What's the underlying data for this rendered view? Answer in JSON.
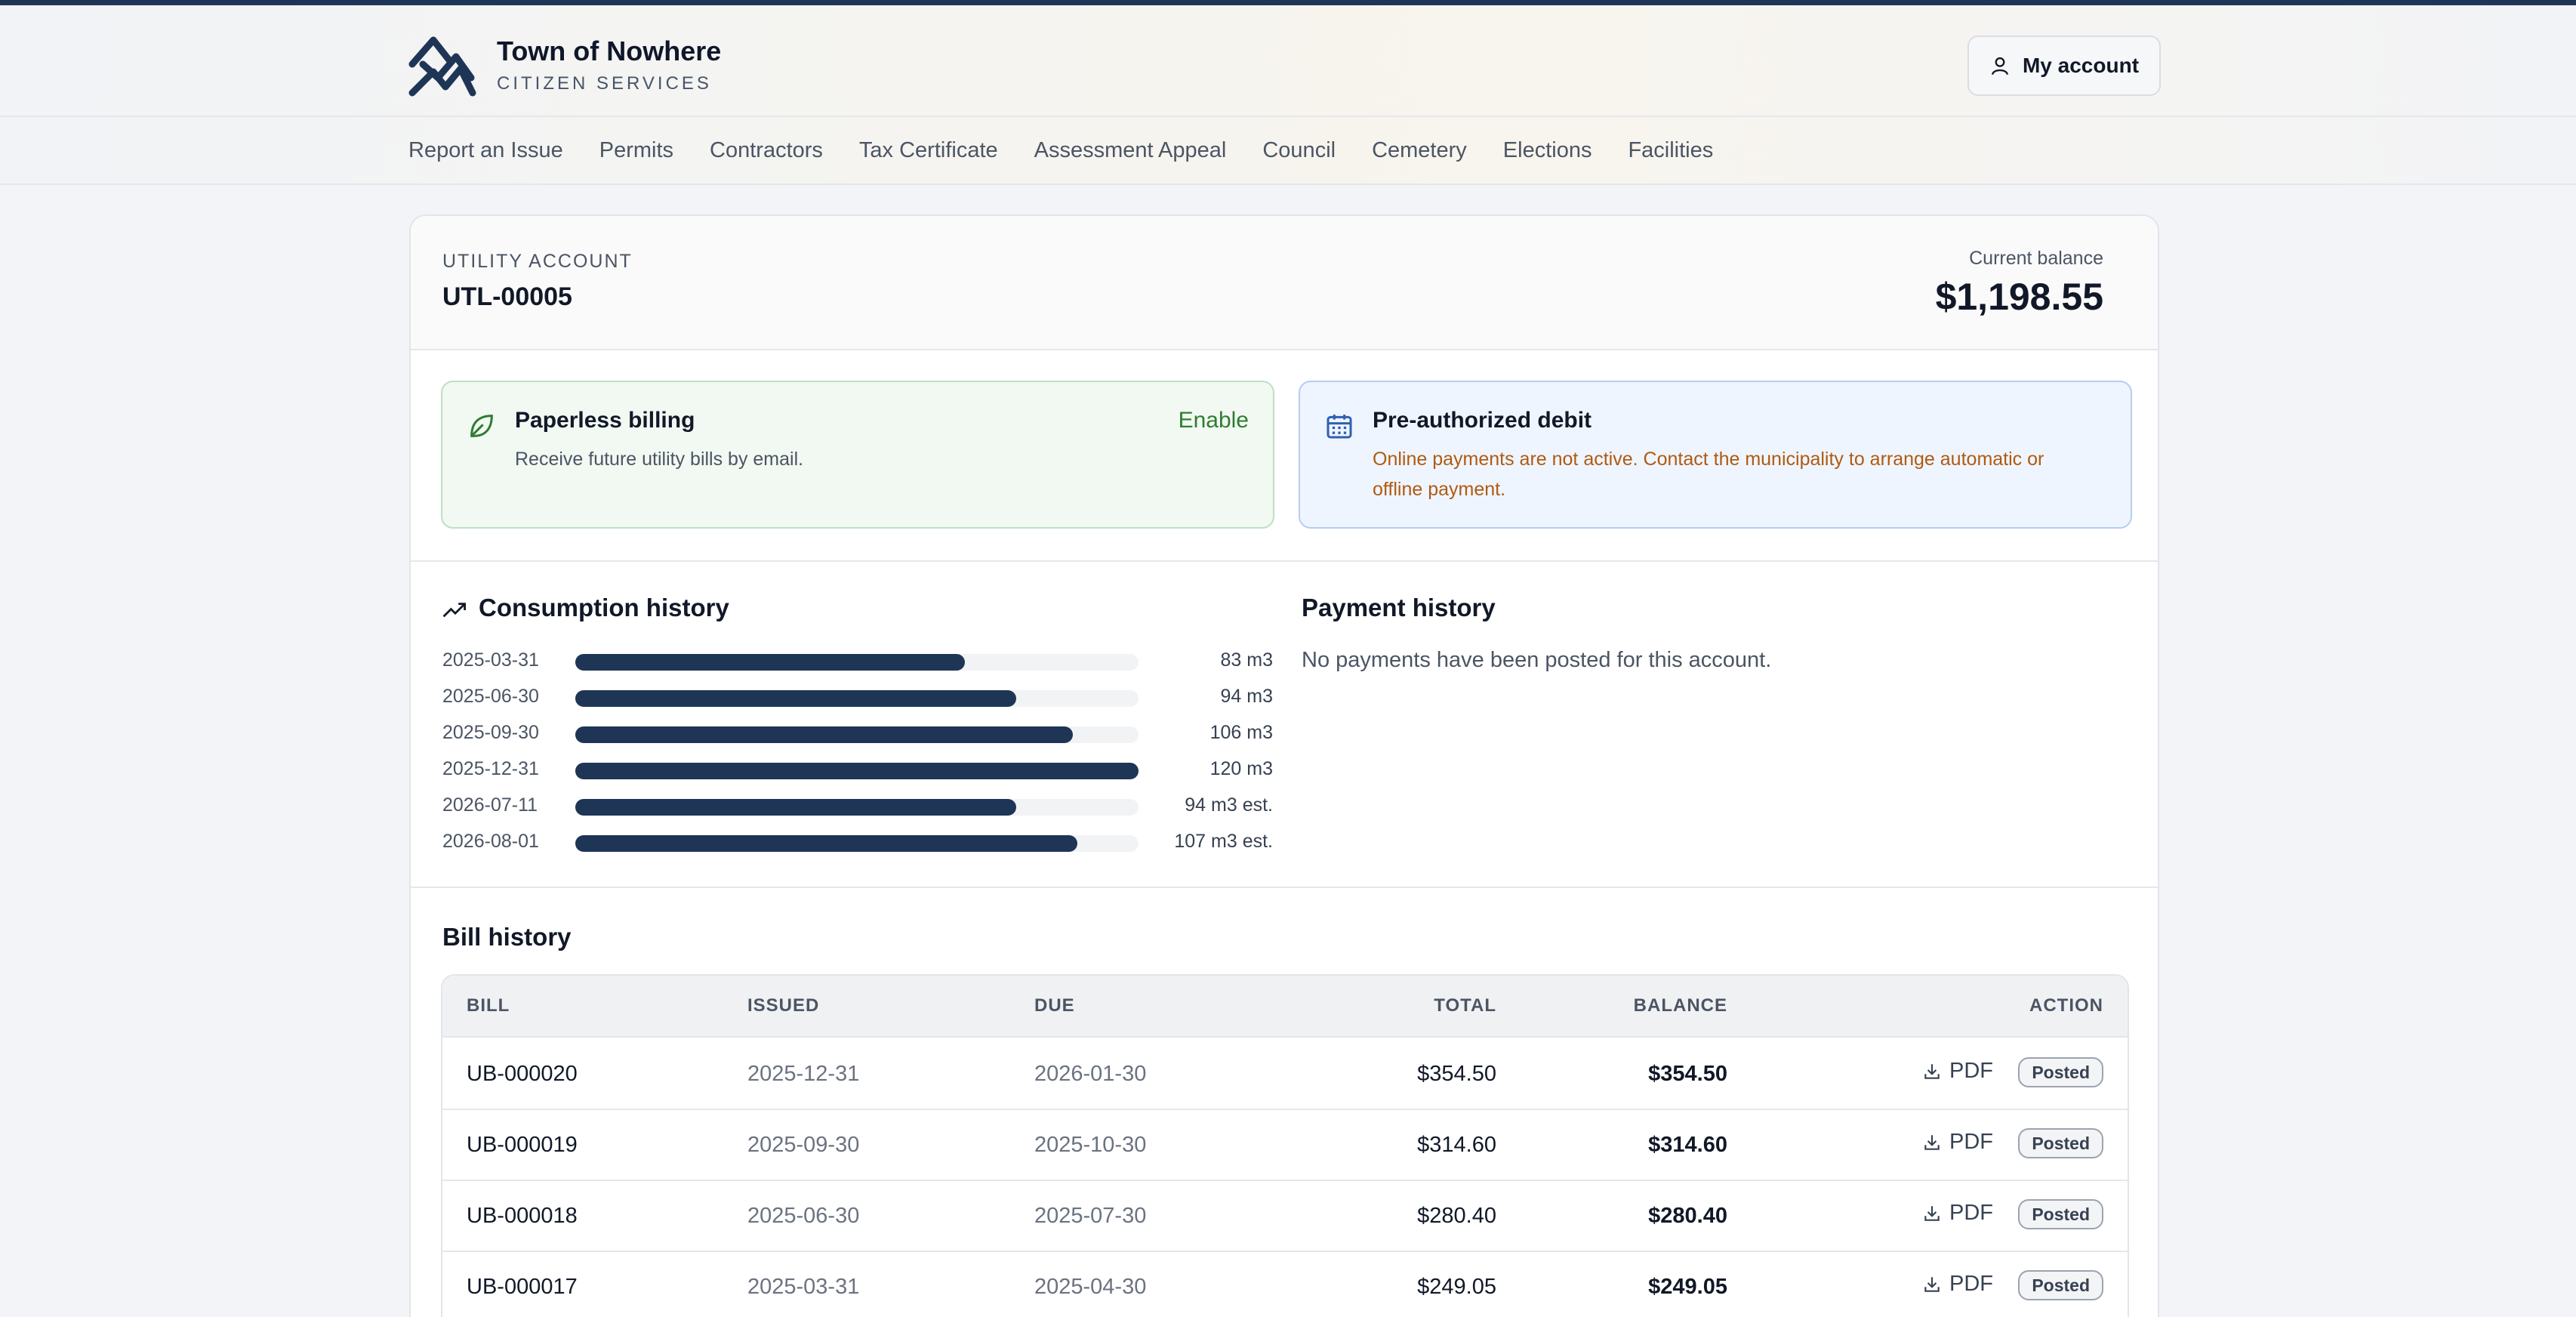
{
  "header": {
    "brand_title": "Town of Nowhere",
    "brand_subtitle": "CITIZEN SERVICES",
    "account_button": "My account",
    "icons": {
      "logo": "town-logo",
      "account": "user-icon"
    }
  },
  "nav": {
    "items": [
      {
        "label": "Report an Issue"
      },
      {
        "label": "Permits"
      },
      {
        "label": "Contractors"
      },
      {
        "label": "Tax Certificate"
      },
      {
        "label": "Assessment Appeal"
      },
      {
        "label": "Council"
      },
      {
        "label": "Cemetery"
      },
      {
        "label": "Elections"
      },
      {
        "label": "Facilities"
      }
    ]
  },
  "account": {
    "label": "UTILITY ACCOUNT",
    "id": "UTL-00005",
    "balance_label": "Current balance",
    "balance": "$1,198.55"
  },
  "paperless": {
    "title": "Paperless billing",
    "description": "Receive future utility bills by email.",
    "action": "Enable",
    "icon": "leaf-icon"
  },
  "preauth": {
    "title": "Pre-authorized debit",
    "description": "Online payments are not active. Contact the municipality to arrange automatic or offline payment.",
    "icon": "calendar-icon"
  },
  "consumption": {
    "title": "Consumption history",
    "icon": "trending-up-icon",
    "max": 120,
    "rows": [
      {
        "date": "2025-03-31",
        "value": 83,
        "label": "83 m3"
      },
      {
        "date": "2025-06-30",
        "value": 94,
        "label": "94 m3"
      },
      {
        "date": "2025-09-30",
        "value": 106,
        "label": "106 m3"
      },
      {
        "date": "2025-12-31",
        "value": 120,
        "label": "120 m3"
      },
      {
        "date": "2026-07-11",
        "value": 94,
        "label": "94 m3 est."
      },
      {
        "date": "2026-08-01",
        "value": 107,
        "label": "107 m3 est."
      }
    ]
  },
  "payments": {
    "title": "Payment history",
    "empty_text": "No payments have been posted for this account."
  },
  "bills": {
    "title": "Bill history",
    "columns": {
      "bill": "BILL",
      "issued": "ISSUED",
      "due": "DUE",
      "total": "TOTAL",
      "balance": "BALANCE",
      "action": "ACTION"
    },
    "rows": [
      {
        "bill": "UB-000020",
        "issued": "2025-12-31",
        "due": "2026-01-30",
        "total": "$354.50",
        "balance": "$354.50",
        "pdf": "PDF",
        "status": "Posted"
      },
      {
        "bill": "UB-000019",
        "issued": "2025-09-30",
        "due": "2025-10-30",
        "total": "$314.60",
        "balance": "$314.60",
        "pdf": "PDF",
        "status": "Posted"
      },
      {
        "bill": "UB-000018",
        "issued": "2025-06-30",
        "due": "2025-07-30",
        "total": "$280.40",
        "balance": "$280.40",
        "pdf": "PDF",
        "status": "Posted"
      },
      {
        "bill": "UB-000017",
        "issued": "2025-03-31",
        "due": "2025-04-30",
        "total": "$249.05",
        "balance": "$249.05",
        "pdf": "PDF",
        "status": "Posted"
      }
    ]
  },
  "colors": {
    "brand_navy": "#1f3556",
    "success_green": "#2e7d32",
    "warning_orange": "#b05a12"
  }
}
